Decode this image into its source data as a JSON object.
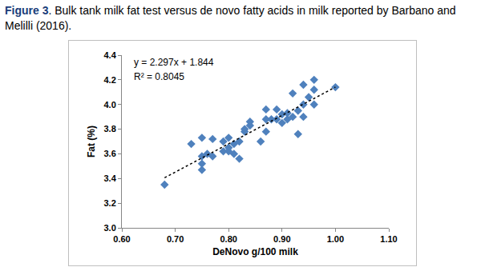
{
  "chart_data": {
    "type": "scatter",
    "title": "Figure 3. Bulk tank milk fat test versus de novo fatty acids in milk reported by Barbano and Melilli (2016).",
    "x_label": "DeNovo g/100 milk",
    "y_label": "Fat (%)",
    "annotations": [
      "y = 2.297x + 1.844",
      "R² = 0.8045"
    ],
    "xlim": [
      0.6,
      1.1
    ],
    "xticks": [
      {
        "value": 0.6,
        "label": "0.60"
      },
      {
        "value": 0.7,
        "label": "0.70"
      },
      {
        "value": 0.8,
        "label": "0.80"
      },
      {
        "value": 0.9,
        "label": "0.90"
      },
      {
        "value": 1.0,
        "label": "1.00"
      },
      {
        "value": 1.1,
        "label": "1.10"
      }
    ],
    "ylim": [
      3.0,
      4.4
    ],
    "yticks": [
      {
        "value": 3.0,
        "label": "3.0"
      },
      3.2,
      3.4,
      3.6,
      3.8,
      {
        "value": 4.0,
        "label": "4.0"
      },
      4.2,
      4.4
    ],
    "grid": false,
    "series": [
      {
        "type": "scatter",
        "marker": "diamond",
        "color": "#4f81bd",
        "x": [
          0.68,
          0.73,
          0.75,
          0.75,
          0.75,
          0.75,
          0.76,
          0.77,
          0.77,
          0.79,
          0.79,
          0.8,
          0.8,
          0.8,
          0.81,
          0.81,
          0.82,
          0.82,
          0.83,
          0.83,
          0.84,
          0.84,
          0.86,
          0.87,
          0.87,
          0.87,
          0.88,
          0.89,
          0.89,
          0.9,
          0.9,
          0.91,
          0.91,
          0.92,
          0.92,
          0.93,
          0.93,
          0.94,
          0.94,
          0.94,
          0.95,
          0.96,
          0.96,
          0.96,
          1.0
        ],
        "values": [
          3.35,
          3.68,
          3.73,
          3.58,
          3.52,
          3.47,
          3.6,
          3.72,
          3.58,
          3.62,
          3.7,
          3.73,
          3.65,
          3.62,
          3.6,
          3.68,
          3.56,
          3.7,
          3.78,
          3.8,
          3.86,
          3.83,
          3.7,
          3.78,
          3.88,
          3.96,
          3.88,
          3.96,
          3.88,
          3.92,
          3.85,
          3.88,
          3.93,
          3.9,
          4.09,
          3.95,
          3.76,
          4.0,
          4.16,
          3.9,
          4.06,
          4.12,
          4.0,
          4.2,
          4.14
        ]
      },
      {
        "type": "line",
        "line_style": "dotted",
        "color": "#000000",
        "x": [
          0.68,
          1.0
        ],
        "values": [
          3.406,
          4.141
        ]
      }
    ]
  }
}
